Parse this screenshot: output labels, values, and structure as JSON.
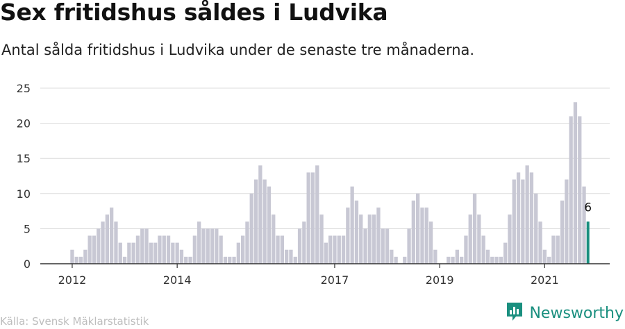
{
  "header": {
    "title": "Sex fritidshus såldes i Ludvika",
    "subtitle": "Antal sålda fritidshus i Ludvika under de senaste tre månaderna."
  },
  "footer": {
    "source": "Källa: Svensk Mäklarstatistik",
    "brand": "Newsworthy",
    "brand_icon": "newsworthy-logo-icon"
  },
  "colors": {
    "bar": "#c8c8d4",
    "highlight": "#1a8f7f",
    "grid": "#dcdcdc",
    "axis": "#333333"
  },
  "chart_data": {
    "type": "bar",
    "title": "Sex fritidshus såldes i Ludvika",
    "xlabel": "",
    "ylabel": "",
    "ylim": [
      0,
      25
    ],
    "yticks": [
      "0",
      "5",
      "10",
      "15",
      "20",
      "25"
    ],
    "xticks": [
      {
        "label": "2012",
        "index": 1
      },
      {
        "label": "2014",
        "index": 25
      },
      {
        "label": "2017",
        "index": 61
      },
      {
        "label": "2019",
        "index": 85
      },
      {
        "label": "2021",
        "index": 109
      }
    ],
    "values": [
      0,
      2,
      1,
      1,
      2,
      4,
      4,
      5,
      6,
      7,
      8,
      6,
      3,
      1,
      3,
      3,
      4,
      5,
      5,
      3,
      3,
      4,
      4,
      4,
      3,
      3,
      2,
      1,
      1,
      4,
      6,
      5,
      5,
      5,
      5,
      4,
      1,
      1,
      1,
      3,
      4,
      6,
      10,
      12,
      14,
      12,
      11,
      7,
      4,
      4,
      2,
      2,
      1,
      5,
      6,
      13,
      13,
      14,
      7,
      3,
      4,
      4,
      4,
      4,
      8,
      11,
      9,
      7,
      5,
      7,
      7,
      8,
      5,
      5,
      2,
      1,
      0,
      1,
      5,
      9,
      10,
      8,
      8,
      6,
      2,
      0,
      0,
      1,
      1,
      2,
      1,
      4,
      7,
      10,
      7,
      4,
      2,
      1,
      1,
      1,
      3,
      7,
      12,
      13,
      12,
      14,
      13,
      10,
      6,
      2,
      1,
      4,
      4,
      9,
      12,
      21,
      23,
      21,
      11,
      6
    ],
    "highlight_index": 119,
    "highlight_label": "6"
  }
}
